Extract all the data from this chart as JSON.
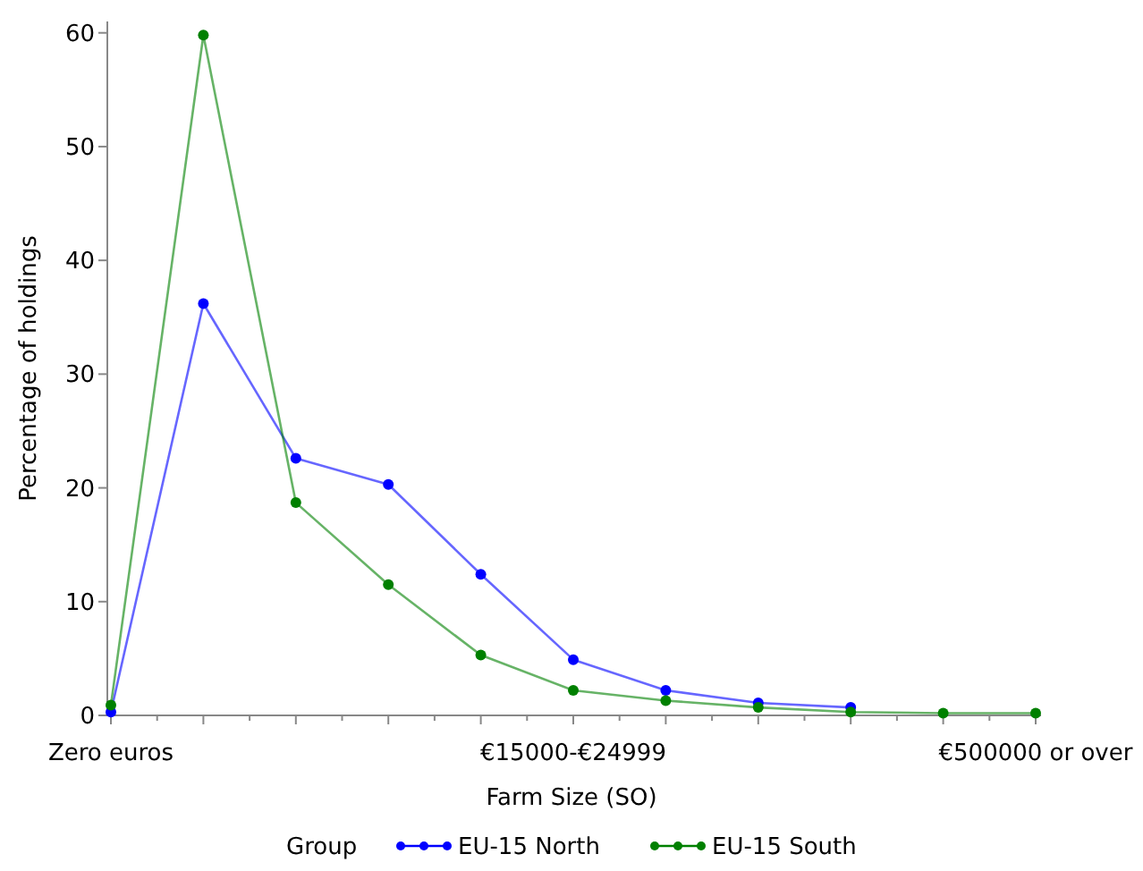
{
  "chart_data": {
    "type": "line",
    "xlabel": "Farm Size (SO)",
    "ylabel": "Percentage of holdings",
    "legend_title": "Group",
    "legend": "bottom",
    "marker": "circle",
    "line_style": "solid",
    "grid": false,
    "categories": [
      "Zero euros",
      null,
      null,
      null,
      null,
      "€15000-€24999",
      null,
      null,
      null,
      null,
      "€500000 or over"
    ],
    "ylim": [
      0,
      61
    ],
    "yticks": [
      0,
      10,
      20,
      30,
      40,
      50,
      60
    ],
    "series": [
      {
        "name": "EU-15 North",
        "color": "#0000ff",
        "values": [
          0.3,
          36.2,
          22.6,
          20.3,
          12.4,
          4.9,
          2.2,
          1.1,
          0.7,
          null,
          null
        ]
      },
      {
        "name": "EU-15 South",
        "color": "#008000",
        "values": [
          0.9,
          59.8,
          18.7,
          11.5,
          5.3,
          2.2,
          1.3,
          0.7,
          0.3,
          0.2,
          0.2
        ]
      }
    ]
  }
}
